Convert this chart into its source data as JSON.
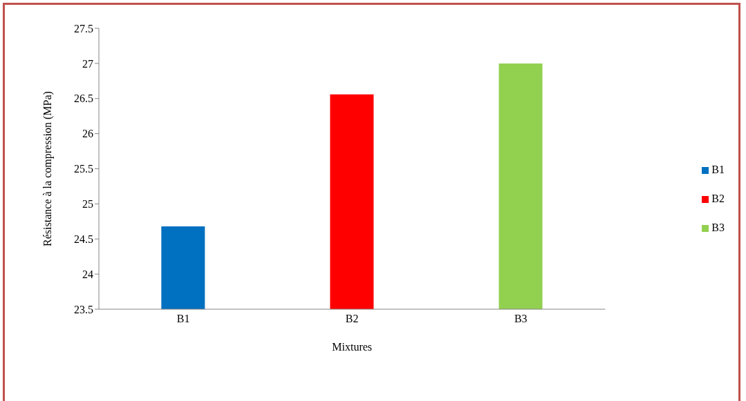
{
  "chart_data": {
    "type": "bar",
    "xlabel": "Mixtures",
    "ylabel": "Résistance à la compression (MPa)",
    "categories": [
      "B1",
      "B2",
      "B3"
    ],
    "series": [
      {
        "name": "B1",
        "color": "#0070c0",
        "values": [
          24.68,
          null,
          null
        ]
      },
      {
        "name": "B2",
        "color": "#ff0000",
        "values": [
          null,
          26.56,
          null
        ]
      },
      {
        "name": "B3",
        "color": "#92d050",
        "values": [
          null,
          null,
          27.0
        ]
      }
    ],
    "ylim": [
      23.5,
      27.5
    ],
    "yticks": [
      23.5,
      24,
      24.5,
      25,
      25.5,
      26,
      26.5,
      27,
      27.5
    ],
    "legend": "right"
  }
}
